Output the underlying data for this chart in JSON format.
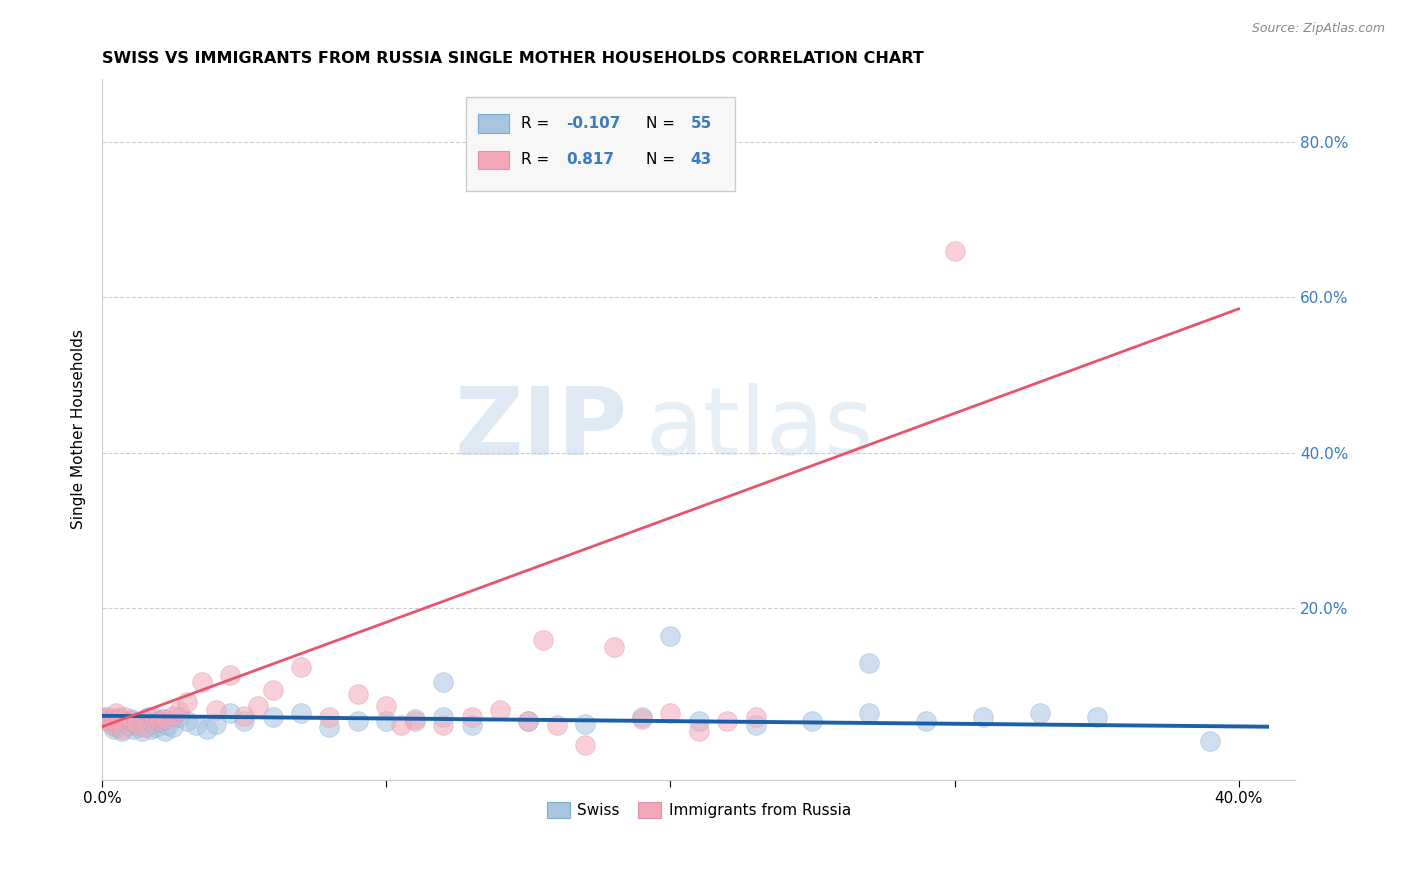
{
  "title": "SWISS VS IMMIGRANTS FROM RUSSIA SINGLE MOTHER HOUSEHOLDS CORRELATION CHART",
  "source": "Source: ZipAtlas.com",
  "ylabel": "Single Mother Households",
  "xlim": [
    0.0,
    0.42
  ],
  "ylim": [
    -0.02,
    0.88
  ],
  "xticks": [
    0.0,
    0.1,
    0.2,
    0.3,
    0.4
  ],
  "yticks": [
    0.2,
    0.4,
    0.6,
    0.8
  ],
  "xtick_labels": [
    "0.0%",
    "",
    "",
    "",
    "40.0%"
  ],
  "ytick_labels": [
    "20.0%",
    "40.0%",
    "60.0%",
    "80.0%"
  ],
  "swiss_color": "#a8c4e0",
  "russia_color": "#f4a7b9",
  "swiss_line_color": "#1a5fa8",
  "russia_line_color": "#e8546a",
  "watermark_zip": "ZIP",
  "watermark_atlas": "atlas",
  "legend_label_swiss": "Swiss",
  "legend_label_russia": "Immigrants from Russia",
  "swiss_x": [
    0.001,
    0.002,
    0.003,
    0.004,
    0.005,
    0.005,
    0.006,
    0.007,
    0.008,
    0.009,
    0.01,
    0.011,
    0.012,
    0.013,
    0.014,
    0.015,
    0.016,
    0.017,
    0.018,
    0.019,
    0.02,
    0.021,
    0.022,
    0.023,
    0.025,
    0.027,
    0.03,
    0.033,
    0.037,
    0.04,
    0.045,
    0.05,
    0.06,
    0.07,
    0.08,
    0.09,
    0.1,
    0.11,
    0.12,
    0.13,
    0.15,
    0.17,
    0.19,
    0.21,
    0.23,
    0.25,
    0.27,
    0.29,
    0.31,
    0.33,
    0.12,
    0.2,
    0.27,
    0.35,
    0.39
  ],
  "swiss_y": [
    0.06,
    0.055,
    0.058,
    0.045,
    0.052,
    0.048,
    0.06,
    0.042,
    0.055,
    0.05,
    0.058,
    0.045,
    0.052,
    0.048,
    0.042,
    0.055,
    0.06,
    0.045,
    0.052,
    0.048,
    0.055,
    0.058,
    0.042,
    0.05,
    0.048,
    0.06,
    0.055,
    0.05,
    0.045,
    0.052,
    0.065,
    0.055,
    0.06,
    0.065,
    0.048,
    0.055,
    0.055,
    0.058,
    0.06,
    0.05,
    0.055,
    0.052,
    0.06,
    0.055,
    0.05,
    0.055,
    0.065,
    0.055,
    0.06,
    0.065,
    0.105,
    0.165,
    0.13,
    0.06,
    0.03
  ],
  "russia_x": [
    0.001,
    0.002,
    0.003,
    0.004,
    0.005,
    0.006,
    0.007,
    0.008,
    0.01,
    0.012,
    0.015,
    0.018,
    0.02,
    0.022,
    0.025,
    0.027,
    0.03,
    0.035,
    0.04,
    0.045,
    0.05,
    0.055,
    0.06,
    0.07,
    0.08,
    0.09,
    0.1,
    0.105,
    0.11,
    0.12,
    0.13,
    0.14,
    0.15,
    0.155,
    0.16,
    0.17,
    0.18,
    0.19,
    0.2,
    0.21,
    0.22,
    0.23,
    0.3
  ],
  "russia_y": [
    0.058,
    0.06,
    0.052,
    0.055,
    0.065,
    0.058,
    0.045,
    0.06,
    0.055,
    0.052,
    0.048,
    0.06,
    0.055,
    0.058,
    0.062,
    0.068,
    0.08,
    0.105,
    0.07,
    0.115,
    0.062,
    0.075,
    0.095,
    0.125,
    0.06,
    0.09,
    0.075,
    0.05,
    0.055,
    0.05,
    0.06,
    0.07,
    0.055,
    0.16,
    0.05,
    0.025,
    0.15,
    0.058,
    0.065,
    0.042,
    0.055,
    0.06,
    0.66
  ],
  "swiss_line_x": [
    0.0,
    0.41
  ],
  "swiss_line_y": [
    0.062,
    0.048
  ],
  "russia_line_x": [
    0.0,
    0.4
  ],
  "russia_line_y": [
    0.048,
    0.585
  ]
}
